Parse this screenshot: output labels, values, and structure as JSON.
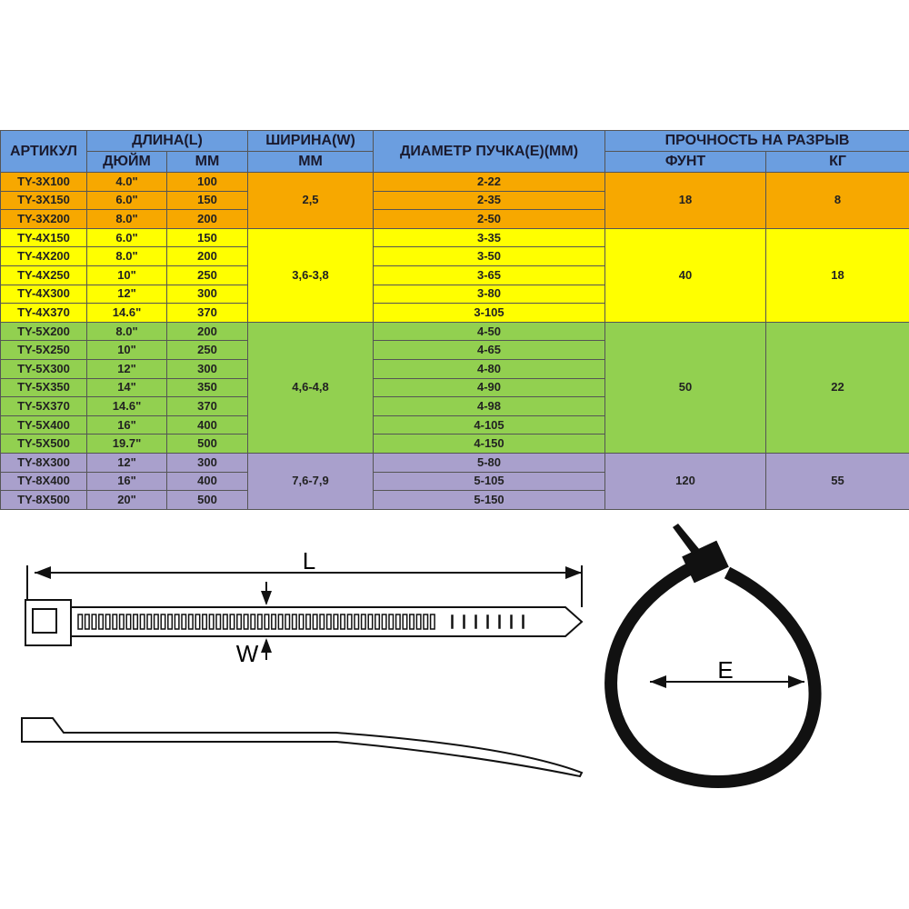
{
  "table": {
    "header": {
      "article": "АРТИКУЛ",
      "length": "ДЛИНА(L)",
      "inch": "ДЮЙМ",
      "mm": "ММ",
      "width": "ШИРИНА(W)",
      "width_unit": "ММ",
      "diameter": "ДИАМЕТР ПУЧКА(E)(ММ)",
      "strength": "ПРОЧНОСТЬ НА РАЗРЫВ",
      "lb": "ФУНТ",
      "kg": "КГ"
    },
    "groups": [
      {
        "color": "#f7a800",
        "width": "2,5",
        "lb": "18",
        "kg": "8",
        "rows": [
          [
            "TY-3X100",
            "4.0\"",
            "100",
            "2-22"
          ],
          [
            "TY-3X150",
            "6.0\"",
            "150",
            "2-35"
          ],
          [
            "TY-3X200",
            "8.0\"",
            "200",
            "2-50"
          ]
        ]
      },
      {
        "color": "#ffff00",
        "width": "3,6-3,8",
        "lb": "40",
        "kg": "18",
        "rows": [
          [
            "TY-4X150",
            "6.0\"",
            "150",
            "3-35"
          ],
          [
            "TY-4X200",
            "8.0\"",
            "200",
            "3-50"
          ],
          [
            "TY-4X250",
            "10\"",
            "250",
            "3-65"
          ],
          [
            "TY-4X300",
            "12\"",
            "300",
            "3-80"
          ],
          [
            "TY-4X370",
            "14.6\"",
            "370",
            "3-105"
          ]
        ]
      },
      {
        "color": "#92d050",
        "width": "4,6-4,8",
        "lb": "50",
        "kg": "22",
        "rows": [
          [
            "TY-5X200",
            "8.0\"",
            "200",
            "4-50"
          ],
          [
            "TY-5X250",
            "10\"",
            "250",
            "4-65"
          ],
          [
            "TY-5X300",
            "12\"",
            "300",
            "4-80"
          ],
          [
            "TY-5X350",
            "14\"",
            "350",
            "4-90"
          ],
          [
            "TY-5X370",
            "14.6\"",
            "370",
            "4-98"
          ],
          [
            "TY-5X400",
            "16\"",
            "400",
            "4-105"
          ],
          [
            "TY-5X500",
            "19.7\"",
            "500",
            "4-150"
          ]
        ]
      },
      {
        "color": "#a9a0cc",
        "width": "7,6-7,9",
        "lb": "120",
        "kg": "55",
        "rows": [
          [
            "TY-8X300",
            "12\"",
            "300",
            "5-80"
          ],
          [
            "TY-8X400",
            "16\"",
            "400",
            "5-105"
          ],
          [
            "TY-8X500",
            "20\"",
            "500",
            "5-150"
          ]
        ]
      }
    ]
  },
  "diagram": {
    "length_label": "L",
    "width_label": "W",
    "diameter_label": "E"
  }
}
